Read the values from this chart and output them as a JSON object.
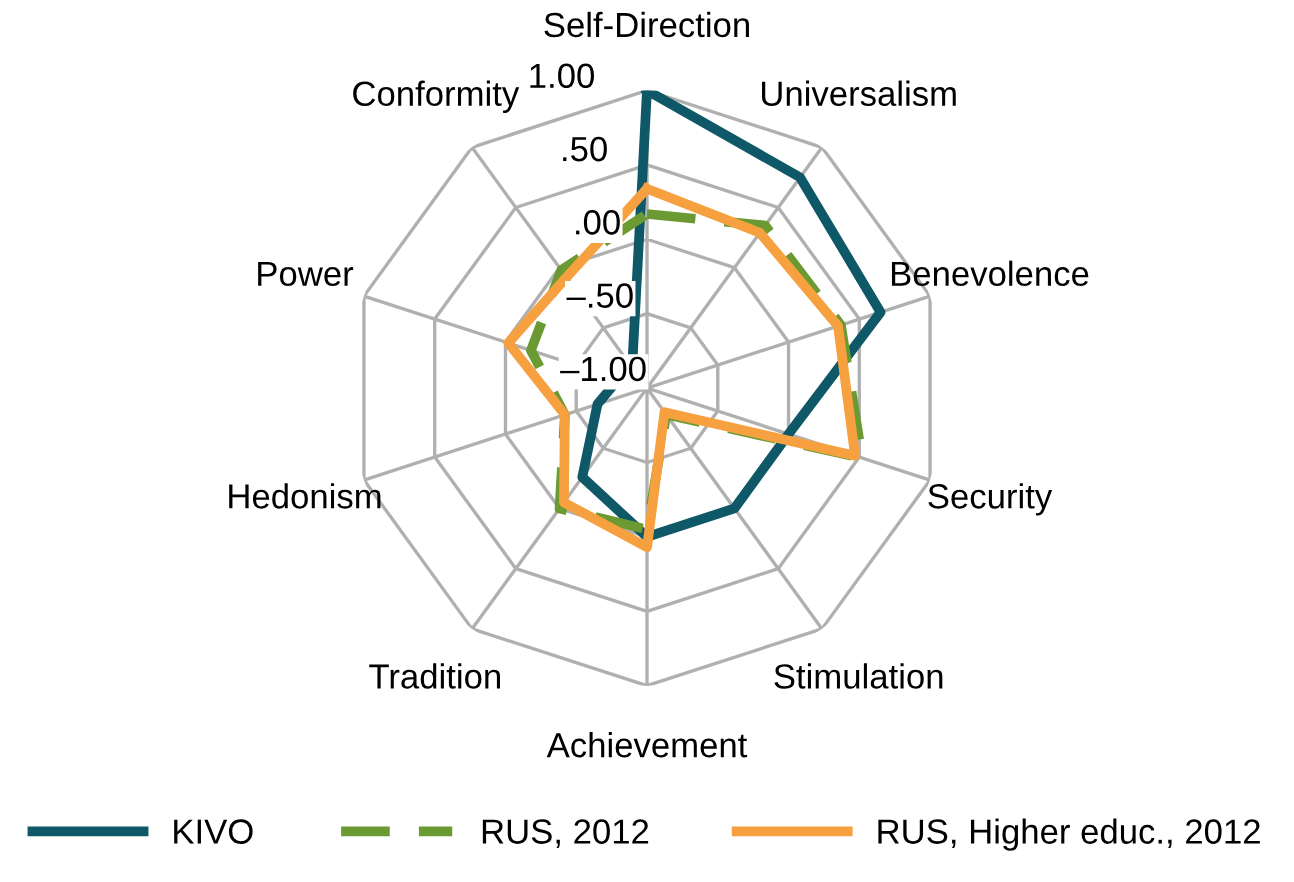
{
  "chart_data": {
    "type": "radar",
    "categories": [
      "Self-Direction",
      "Universalism",
      "Benevolence",
      "Security",
      "Stimulation",
      "Achievement",
      "Tradition",
      "Hedonism",
      "Power",
      "Conformity"
    ],
    "ylim": [
      -1.0,
      1.0
    ],
    "yticks": [
      {
        "value": -1.0,
        "label": "–1.00"
      },
      {
        "value": -0.5,
        "label": "–.50"
      },
      {
        "value": 0.0,
        "label": ".00"
      },
      {
        "value": 0.5,
        "label": ".50"
      },
      {
        "value": 1.0,
        "label": "1.00"
      }
    ],
    "grid": true,
    "legend": "bottom",
    "line_style": "solid",
    "marker": "none",
    "series": [
      {
        "name": "KIVO",
        "color": "#0f5868",
        "values": [
          1.0,
          0.75,
          0.65,
          0.0,
          0.0,
          0.0,
          -0.26,
          -0.65,
          -0.8,
          -0.83
        ]
      },
      {
        "name": "RUS, 2012",
        "color": "#6b9a32",
        "line_style": "dashed",
        "values": [
          0.17,
          0.35,
          0.37,
          0.52,
          -0.78,
          -0.05,
          0.0,
          -0.42,
          -0.18,
          -0.02
        ]
      },
      {
        "name": "RUS, Higher educ., 2012",
        "color": "#f7a040",
        "values": [
          0.34,
          0.29,
          0.35,
          0.47,
          -0.8,
          0.07,
          -0.05,
          -0.42,
          -0.02,
          -0.08
        ]
      }
    ]
  }
}
